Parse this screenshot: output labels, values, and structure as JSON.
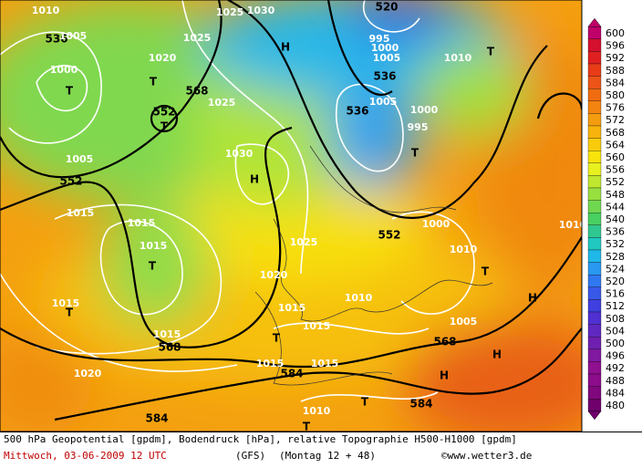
{
  "map": {
    "labels": [
      "1010",
      "1025",
      "1030",
      "520",
      "536",
      "1005",
      "1025",
      "1020",
      "T",
      "1000",
      "T",
      "568",
      "H",
      "995",
      "1000",
      "1005",
      "1010",
      "T",
      "536",
      "552",
      "T",
      "1025",
      "536",
      "1005",
      "1000",
      "995",
      "T",
      "1005",
      "552",
      "1030",
      "H",
      "1015",
      "1015",
      "1000",
      "552",
      "1025",
      "1010",
      "1015",
      "T",
      "1020",
      "T",
      "H",
      "1010",
      "1015",
      "T",
      "1015",
      "1015",
      "1005",
      "T",
      "1015",
      "568",
      "568",
      "H",
      "1020",
      "1015",
      "1015",
      "584",
      "H",
      "T",
      "584",
      "1010",
      "584",
      "T",
      "1010"
    ],
    "legend": {
      "values": [
        600,
        596,
        592,
        588,
        584,
        580,
        576,
        572,
        568,
        564,
        560,
        556,
        552,
        548,
        544,
        540,
        536,
        532,
        528,
        524,
        520,
        516,
        512,
        508,
        504,
        500,
        496,
        492,
        488,
        484,
        480
      ],
      "colors": [
        "#c0006a",
        "#d4102e",
        "#e02020",
        "#e83c18",
        "#ec5418",
        "#f06c10",
        "#f48410",
        "#f49c10",
        "#f8b40c",
        "#f8cc0c",
        "#f8e40c",
        "#e8f020",
        "#c0e830",
        "#98e040",
        "#70d850",
        "#48d060",
        "#30c890",
        "#20c8c0",
        "#20b8e8",
        "#2898f0",
        "#3078f0",
        "#3858e8",
        "#4040e0",
        "#5030d0",
        "#6028c0",
        "#7020b0",
        "#8018a0",
        "#901090",
        "#8c0c8c",
        "#80087c",
        "#70006c"
      ]
    }
  },
  "footer": {
    "description": "500 hPa Geopotential [gpdm], Bodendruck [hPa], relative Topographie H500-H1000 [gpdm]",
    "date": "Mittwoch, 03-06-2009  12 UTC",
    "model": "(GFS)",
    "forecast": "(Montag 12 + 48)",
    "credit": "©www.wetter3.de"
  }
}
